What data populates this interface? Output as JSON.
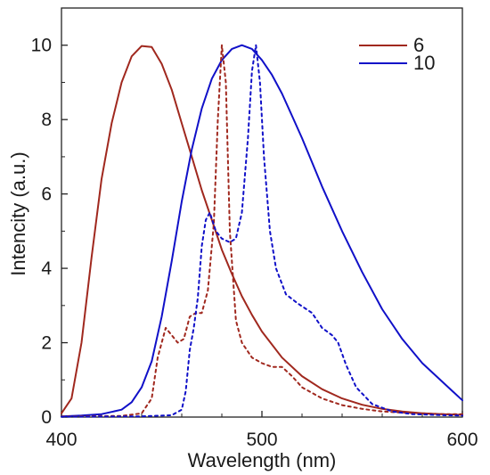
{
  "chart_data": {
    "type": "line",
    "title": "",
    "xlabel": "Wavelength (nm)",
    "ylabel": "Intencity (a.u.)",
    "xlim": [
      400,
      600
    ],
    "ylim": [
      0,
      11
    ],
    "x_ticks": [
      400,
      500,
      600
    ],
    "y_ticks": [
      0,
      2,
      4,
      6,
      8,
      10
    ],
    "grid": false,
    "legend_position": "top-right",
    "series": [
      {
        "name": "6",
        "color": "#a0281e",
        "style": "solid",
        "points": [
          [
            400,
            0.1
          ],
          [
            405,
            0.5
          ],
          [
            410,
            2.0
          ],
          [
            415,
            4.3
          ],
          [
            420,
            6.4
          ],
          [
            425,
            7.9
          ],
          [
            430,
            9.0
          ],
          [
            435,
            9.7
          ],
          [
            440,
            9.98
          ],
          [
            445,
            9.95
          ],
          [
            450,
            9.5
          ],
          [
            455,
            8.8
          ],
          [
            460,
            7.9
          ],
          [
            465,
            7.0
          ],
          [
            470,
            6.1
          ],
          [
            475,
            5.3
          ],
          [
            480,
            4.5
          ],
          [
            485,
            3.85
          ],
          [
            490,
            3.25
          ],
          [
            495,
            2.75
          ],
          [
            500,
            2.3
          ],
          [
            510,
            1.6
          ],
          [
            520,
            1.1
          ],
          [
            530,
            0.75
          ],
          [
            540,
            0.5
          ],
          [
            550,
            0.33
          ],
          [
            560,
            0.22
          ],
          [
            570,
            0.15
          ],
          [
            580,
            0.1
          ],
          [
            590,
            0.08
          ],
          [
            600,
            0.06
          ]
        ]
      },
      {
        "name": "10",
        "color": "#1010c8",
        "style": "solid",
        "points": [
          [
            400,
            0.02
          ],
          [
            410,
            0.04
          ],
          [
            420,
            0.08
          ],
          [
            430,
            0.2
          ],
          [
            435,
            0.4
          ],
          [
            440,
            0.8
          ],
          [
            445,
            1.5
          ],
          [
            450,
            2.7
          ],
          [
            455,
            4.2
          ],
          [
            460,
            5.8
          ],
          [
            465,
            7.2
          ],
          [
            470,
            8.3
          ],
          [
            475,
            9.1
          ],
          [
            480,
            9.6
          ],
          [
            485,
            9.9
          ],
          [
            490,
            10.0
          ],
          [
            495,
            9.9
          ],
          [
            500,
            9.6
          ],
          [
            505,
            9.2
          ],
          [
            510,
            8.7
          ],
          [
            515,
            8.1
          ],
          [
            520,
            7.5
          ],
          [
            530,
            6.2
          ],
          [
            540,
            5.0
          ],
          [
            550,
            3.9
          ],
          [
            560,
            2.9
          ],
          [
            570,
            2.1
          ],
          [
            580,
            1.45
          ],
          [
            590,
            0.95
          ],
          [
            600,
            0.45
          ]
        ]
      },
      {
        "name": "",
        "color": "#a0281e",
        "style": "dotted",
        "points": [
          [
            400,
            0.02
          ],
          [
            430,
            0.03
          ],
          [
            440,
            0.1
          ],
          [
            445,
            0.5
          ],
          [
            448,
            1.6
          ],
          [
            452,
            2.4
          ],
          [
            455,
            2.2
          ],
          [
            458,
            2.0
          ],
          [
            461,
            2.1
          ],
          [
            464,
            2.7
          ],
          [
            467,
            2.8
          ],
          [
            470,
            2.8
          ],
          [
            473,
            3.4
          ],
          [
            476,
            5.2
          ],
          [
            478,
            8.0
          ],
          [
            480,
            10.0
          ],
          [
            482,
            9.0
          ],
          [
            484,
            5.0
          ],
          [
            487,
            2.6
          ],
          [
            490,
            2.0
          ],
          [
            495,
            1.6
          ],
          [
            500,
            1.45
          ],
          [
            505,
            1.35
          ],
          [
            510,
            1.35
          ],
          [
            515,
            1.1
          ],
          [
            520,
            0.8
          ],
          [
            530,
            0.5
          ],
          [
            540,
            0.32
          ],
          [
            550,
            0.22
          ],
          [
            560,
            0.15
          ],
          [
            570,
            0.12
          ],
          [
            580,
            0.1
          ],
          [
            590,
            0.08
          ],
          [
            600,
            0.08
          ]
        ]
      },
      {
        "name": "",
        "color": "#1010c8",
        "style": "dotted",
        "points": [
          [
            400,
            0.01
          ],
          [
            440,
            0.02
          ],
          [
            455,
            0.05
          ],
          [
            460,
            0.2
          ],
          [
            462,
            0.7
          ],
          [
            464,
            1.8
          ],
          [
            466,
            2.4
          ],
          [
            468,
            3.2
          ],
          [
            470,
            4.6
          ],
          [
            472,
            5.3
          ],
          [
            474,
            5.5
          ],
          [
            477,
            5.0
          ],
          [
            480,
            4.8
          ],
          [
            484,
            4.7
          ],
          [
            487,
            4.8
          ],
          [
            490,
            5.5
          ],
          [
            493,
            7.5
          ],
          [
            495,
            9.3
          ],
          [
            497,
            10.0
          ],
          [
            499,
            9.0
          ],
          [
            501,
            7.0
          ],
          [
            504,
            5.0
          ],
          [
            507,
            4.0
          ],
          [
            512,
            3.3
          ],
          [
            518,
            3.05
          ],
          [
            525,
            2.8
          ],
          [
            530,
            2.4
          ],
          [
            535,
            2.2
          ],
          [
            538,
            2.0
          ],
          [
            542,
            1.4
          ],
          [
            547,
            0.8
          ],
          [
            555,
            0.35
          ],
          [
            565,
            0.15
          ],
          [
            575,
            0.08
          ],
          [
            590,
            0.05
          ],
          [
            600,
            0.04
          ]
        ]
      }
    ]
  }
}
